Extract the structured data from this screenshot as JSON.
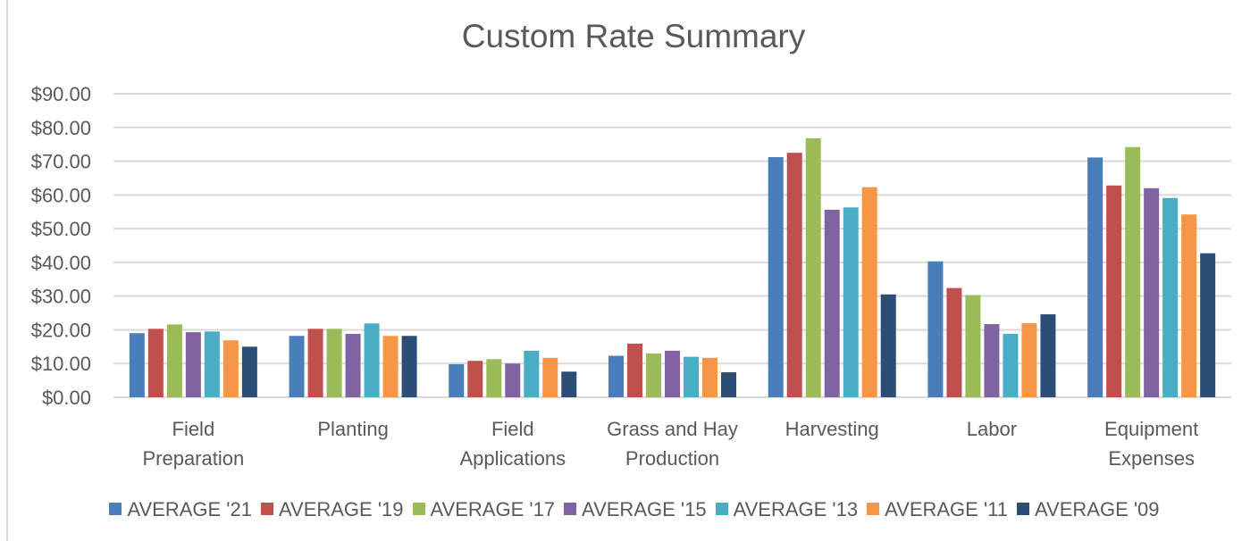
{
  "chart_data": {
    "type": "bar",
    "title": "Custom Rate Summary",
    "xlabel": "",
    "ylabel": "",
    "ylim": [
      0,
      90
    ],
    "yticks": [
      "$0.00",
      "$10.00",
      "$20.00",
      "$30.00",
      "$40.00",
      "$50.00",
      "$60.00",
      "$70.00",
      "$80.00",
      "$90.00"
    ],
    "ytick_values": [
      0,
      10,
      20,
      30,
      40,
      50,
      60,
      70,
      80,
      90
    ],
    "grid": true,
    "legend_position": "bottom",
    "categories": [
      [
        "Field",
        "Preparation"
      ],
      [
        "Planting"
      ],
      [
        "Field",
        "Applications"
      ],
      [
        "Grass and Hay",
        "Production"
      ],
      [
        "Harvesting"
      ],
      [
        "Labor"
      ],
      [
        "Equipment",
        "Expenses"
      ]
    ],
    "series": [
      {
        "name": "AVERAGE '21",
        "color": "#4a7ebb",
        "values": [
          19.0,
          18.2,
          9.8,
          12.3,
          71.2,
          40.3,
          71.1
        ]
      },
      {
        "name": "AVERAGE '19",
        "color": "#c0504d",
        "values": [
          20.3,
          20.3,
          10.8,
          15.9,
          72.5,
          32.4,
          62.8
        ]
      },
      {
        "name": "AVERAGE '17",
        "color": "#9bbb59",
        "values": [
          21.6,
          20.3,
          11.3,
          13.0,
          76.8,
          30.3,
          74.2
        ]
      },
      {
        "name": "AVERAGE '15",
        "color": "#8064a2",
        "values": [
          19.3,
          18.8,
          10.0,
          13.8,
          55.6,
          21.7,
          62.0
        ]
      },
      {
        "name": "AVERAGE '13",
        "color": "#4bacc6",
        "values": [
          19.5,
          21.9,
          13.8,
          12.0,
          56.3,
          18.8,
          59.1
        ]
      },
      {
        "name": "AVERAGE '11",
        "color": "#f79646",
        "values": [
          16.9,
          18.2,
          11.7,
          11.7,
          62.3,
          22.0,
          54.2
        ]
      },
      {
        "name": "AVERAGE '09",
        "color": "#2c4d75",
        "values": [
          15.0,
          18.2,
          7.6,
          7.4,
          30.5,
          24.6,
          42.7
        ]
      }
    ]
  }
}
